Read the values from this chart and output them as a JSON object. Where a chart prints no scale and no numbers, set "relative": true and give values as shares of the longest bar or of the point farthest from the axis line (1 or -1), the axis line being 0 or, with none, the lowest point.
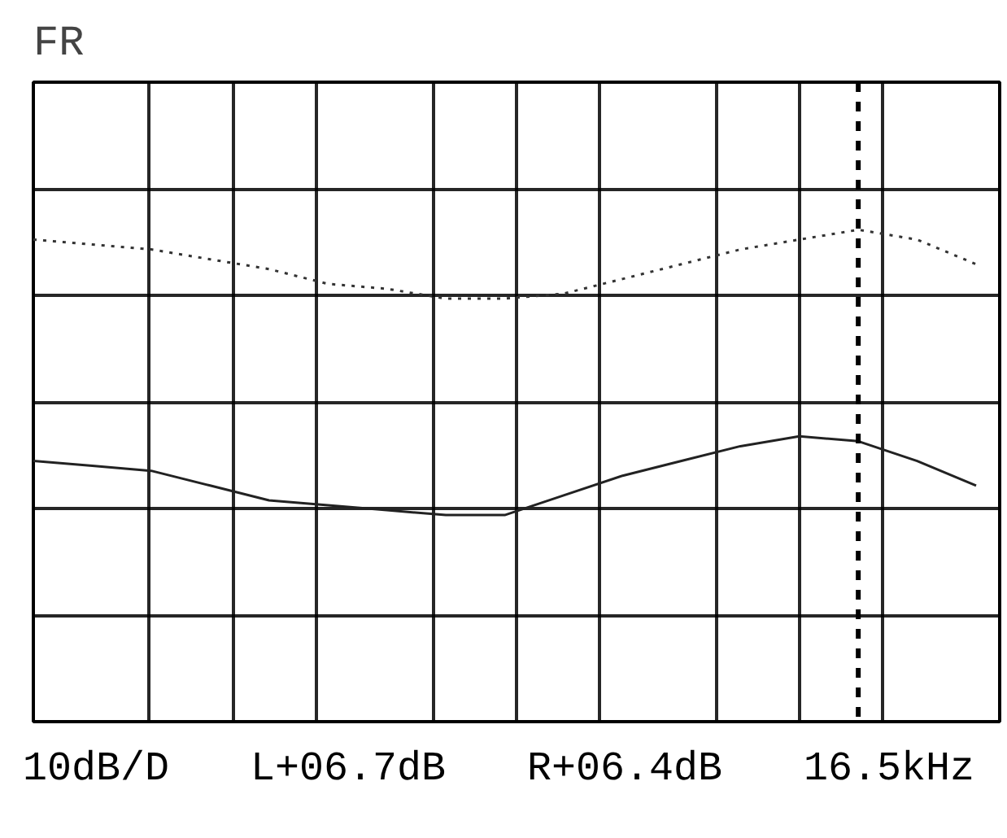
{
  "chart_data": {
    "type": "line",
    "title": "FR",
    "relative": true,
    "categories": [
      null,
      null,
      null,
      null,
      null,
      null,
      null,
      null,
      null,
      null,
      null,
      null,
      null,
      null,
      null,
      null,
      null
    ],
    "series": [
      {
        "color": "#333333",
        "line_style": "dotted",
        "values": [
          0.98,
          0.97,
          0.96,
          0.94,
          0.92,
          0.89,
          0.88,
          0.86,
          0.86,
          0.87,
          0.9,
          0.93,
          0.96,
          0.98,
          1.0,
          0.98,
          0.93
        ]
      },
      {
        "color": "#222222",
        "line_style": "solid",
        "values": [
          0.53,
          0.52,
          0.51,
          0.48,
          0.45,
          0.44,
          0.43,
          0.42,
          0.42,
          0.46,
          0.5,
          0.53,
          0.56,
          0.58,
          0.57,
          0.53,
          0.48
        ]
      }
    ],
    "grid": true,
    "tick_labels": false,
    "annotations": [
      "10dB/D",
      "L+06.7dB",
      "R+06.4dB",
      "16.5kHz"
    ]
  }
}
